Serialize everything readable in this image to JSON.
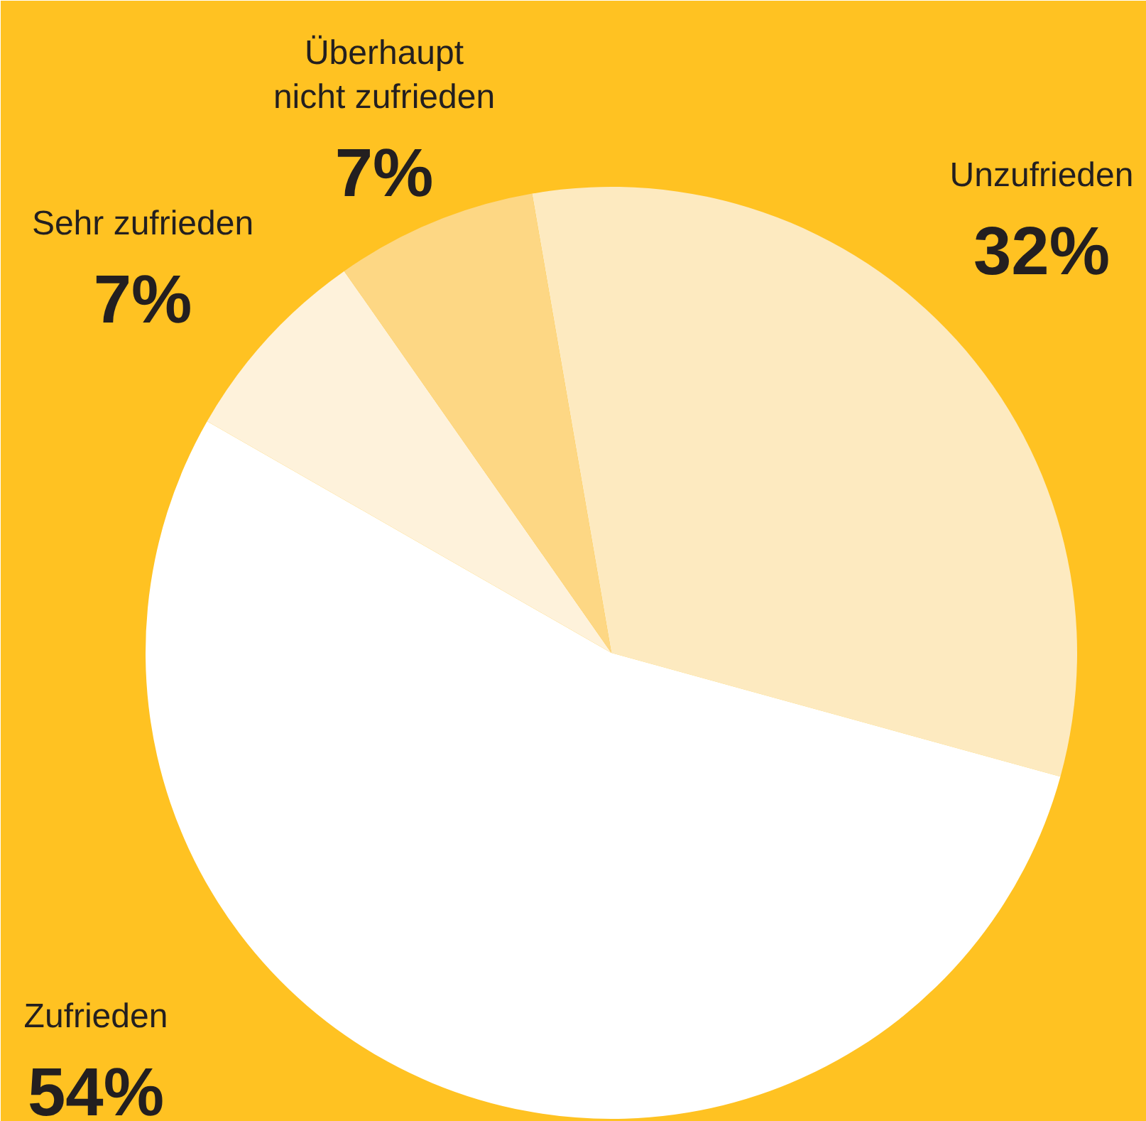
{
  "chart_data": {
    "type": "pie",
    "categories": [
      "Unzufrieden",
      "Zufrieden",
      "Sehr zufrieden",
      "Überhaupt nicht zufrieden"
    ],
    "values": [
      32,
      54,
      7,
      7
    ],
    "colors": [
      "#fdeac0",
      "#ffffff",
      "#fef2db",
      "#fdd784"
    ],
    "value_labels": [
      "32%",
      "54%",
      "7%",
      "7%"
    ]
  }
}
